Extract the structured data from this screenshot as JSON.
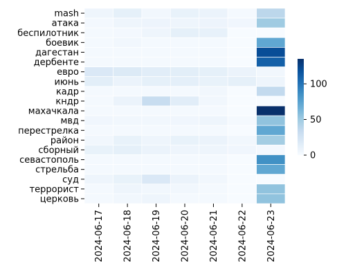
{
  "chart_data": {
    "type": "heatmap",
    "title": "",
    "xlabel": "",
    "ylabel": "",
    "x": [
      "2024-06-17",
      "2024-06-18",
      "2024-06-19",
      "2024-06-20",
      "2024-06-21",
      "2024-06-22",
      "2024-06-23"
    ],
    "y": [
      "mash",
      "атака",
      "беспилотник",
      "боевик",
      "дагестан",
      "дербенте",
      "евро",
      "июнь",
      "кадр",
      "кндр",
      "махачкала",
      "мвд",
      "перестрелка",
      "район",
      "сборный",
      "севастополь",
      "стрельба",
      "суд",
      "террорист",
      "церковь"
    ],
    "values": [
      [
        6,
        12,
        4,
        10,
        8,
        2,
        38
      ],
      [
        3,
        6,
        7,
        6,
        7,
        5,
        50
      ],
      [
        2,
        3,
        6,
        12,
        11,
        0,
        0
      ],
      [
        2,
        4,
        2,
        2,
        2,
        0,
        72
      ],
      [
        2,
        2,
        2,
        2,
        2,
        0,
        120
      ],
      [
        2,
        2,
        2,
        2,
        2,
        0,
        110
      ],
      [
        20,
        18,
        15,
        14,
        12,
        8,
        4
      ],
      [
        14,
        8,
        12,
        13,
        10,
        12,
        6
      ],
      [
        2,
        2,
        2,
        2,
        4,
        0,
        35
      ],
      [
        2,
        8,
        32,
        15,
        4,
        0,
        0
      ],
      [
        2,
        2,
        2,
        2,
        2,
        0,
        135
      ],
      [
        5,
        4,
        4,
        5,
        6,
        2,
        55
      ],
      [
        2,
        2,
        2,
        2,
        2,
        0,
        72
      ],
      [
        4,
        10,
        6,
        10,
        8,
        4,
        48
      ],
      [
        10,
        12,
        8,
        6,
        6,
        5,
        3
      ],
      [
        2,
        2,
        2,
        2,
        2,
        0,
        85
      ],
      [
        2,
        2,
        2,
        2,
        2,
        0,
        72
      ],
      [
        6,
        10,
        20,
        8,
        4,
        0,
        0
      ],
      [
        2,
        6,
        4,
        4,
        2,
        0,
        55
      ],
      [
        2,
        4,
        6,
        2,
        2,
        0,
        55
      ]
    ],
    "colorbar": {
      "min": 0,
      "max": 135,
      "ticks": [
        0,
        50,
        100
      ]
    },
    "colormap": [
      "#f7fbff",
      "#deebf7",
      "#c6dbef",
      "#9ecae1",
      "#6baed6",
      "#4292c6",
      "#2171b5",
      "#08519c",
      "#08306b"
    ],
    "grid": false,
    "legend": "colorbar-right"
  }
}
